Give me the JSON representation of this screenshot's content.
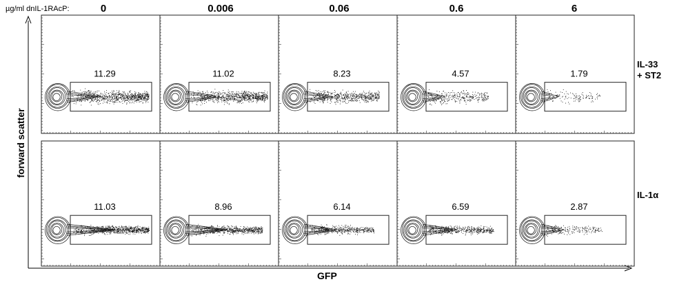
{
  "figure": {
    "concentration_prefix": "µg/ml dnIL-1RAcP:",
    "concentrations": [
      "0",
      "0.006",
      "0.06",
      "0.6",
      "6"
    ],
    "row_labels": [
      {
        "line1": "IL-33",
        "line2": "+ ST2"
      },
      {
        "line1": "IL-1α",
        "line2": ""
      }
    ],
    "x_axis_label": "GFP",
    "y_axis_label": "forward scatter"
  },
  "chart_data": {
    "type": "scatter",
    "title": "",
    "xlabel": "GFP",
    "ylabel": "forward scatter",
    "columns": [
      "0",
      "0.006",
      "0.06",
      "0.6",
      "6"
    ],
    "rows": [
      {
        "name": "IL-33 + ST2",
        "gfp_positive_percent": [
          11.29,
          11.02,
          8.23,
          4.57,
          1.79
        ]
      },
      {
        "name": "IL-1α",
        "gfp_positive_percent": [
          11.03,
          8.96,
          6.14,
          6.59,
          2.87
        ]
      }
    ]
  }
}
